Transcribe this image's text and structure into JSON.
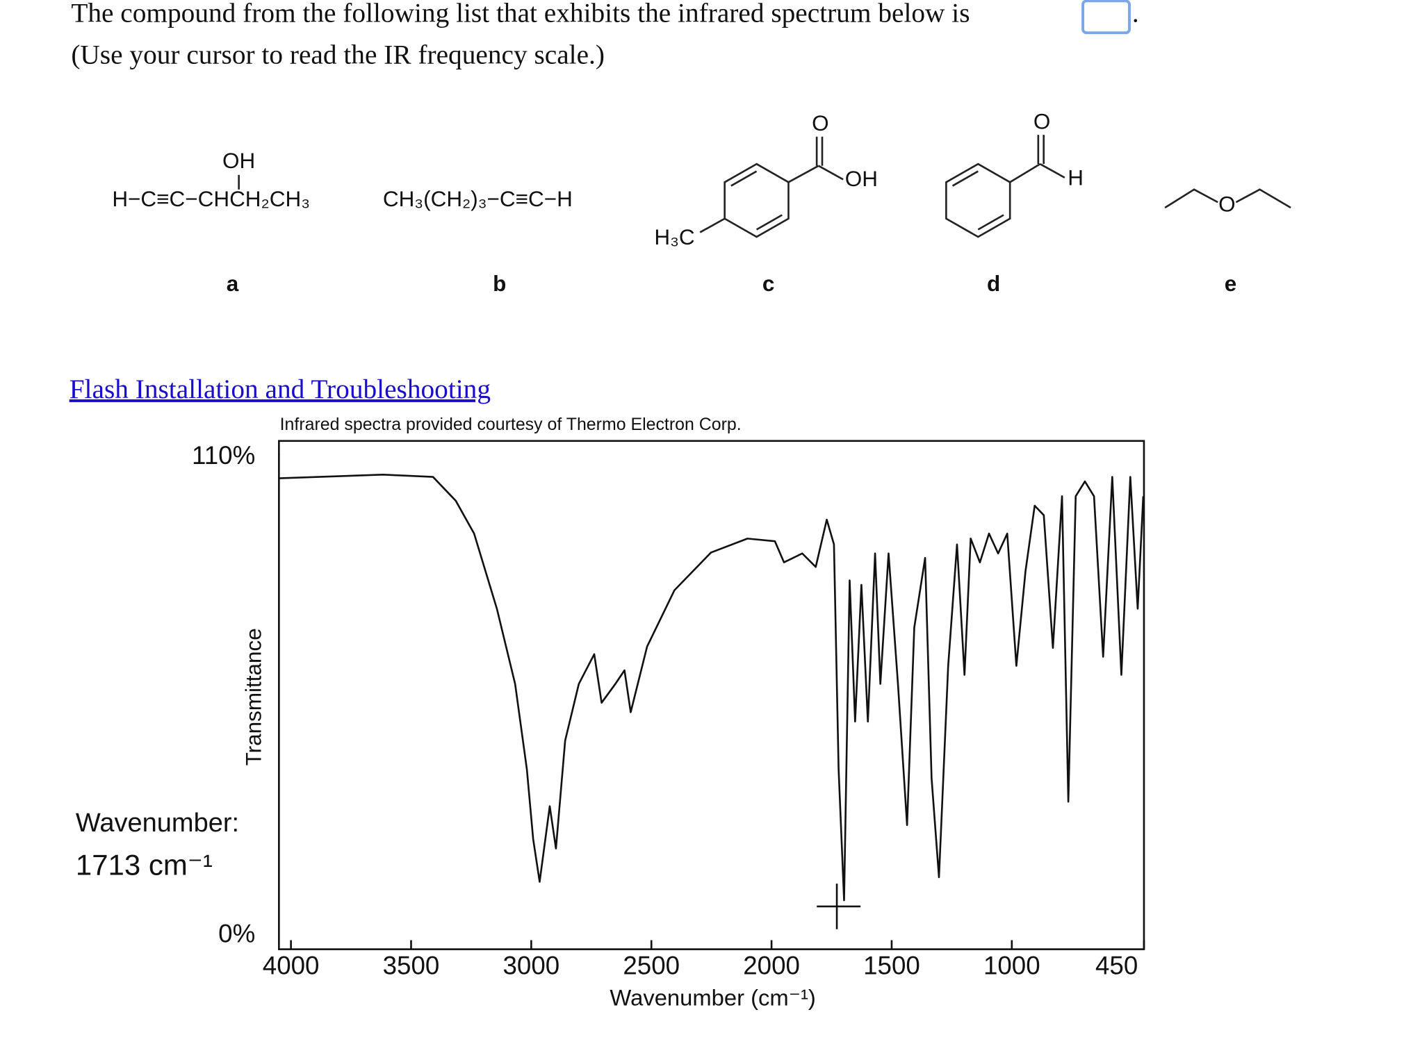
{
  "question": {
    "text": "The compound from the following list that exhibits the infrared spectrum below is",
    "end": ".",
    "hint": "(Use your cursor to read the IR frequency scale.)"
  },
  "structures": [
    {
      "label": "a",
      "texts": [
        "OH",
        "H−C≡C−CHCH₂CH₃"
      ]
    },
    {
      "label": "b",
      "texts": [
        "CH₃(CH₂)₃−C≡C−H"
      ]
    },
    {
      "label": "c",
      "texts": [
        "O",
        "OH",
        "H₃C"
      ]
    },
    {
      "label": "d",
      "texts": [
        "O",
        "H"
      ]
    },
    {
      "label": "e",
      "texts": [
        "O"
      ]
    }
  ],
  "link": "Flash Installation and Troubleshooting",
  "chart_data": {
    "type": "line",
    "credit": "Infrared spectra provided courtesy of Thermo Electron Corp.",
    "xlabel": "Wavenumber (cm⁻¹)",
    "ylabel": "Transmittance",
    "xlim": [
      4050,
      450
    ],
    "ylim": [
      0,
      113
    ],
    "xticks": [
      4000,
      3500,
      3000,
      2500,
      2000,
      1500,
      1000,
      450
    ],
    "yticks": [
      {
        "value": 0,
        "label": "0%"
      },
      {
        "value": 110,
        "label": "110%"
      }
    ],
    "cursor": {
      "label": "Wavenumber:",
      "value": 1713,
      "unit": "cm⁻¹"
    },
    "series": [
      {
        "name": "Transmittance",
        "color": "#111111",
        "x": [
          4050,
          3617,
          3409,
          3314,
          3238,
          3143,
          3067,
          3018,
          2992,
          2965,
          2923,
          2897,
          2859,
          2802,
          2738,
          2707,
          2650,
          2612,
          2586,
          2518,
          2404,
          2252,
          2100,
          1986,
          1948,
          1872,
          1816,
          1770,
          1740,
          1721,
          1698,
          1675,
          1652,
          1626,
          1599,
          1569,
          1547,
          1513,
          1474,
          1436,
          1406,
          1361,
          1334,
          1303,
          1265,
          1228,
          1197,
          1171,
          1133,
          1095,
          1057,
          1019,
          981,
          943,
          905,
          867,
          829,
          791,
          765,
          734,
          696,
          658,
          620,
          582,
          544,
          507,
          476,
          453
        ],
        "values": [
          104.7,
          105.5,
          105,
          99.7,
          92.4,
          75.7,
          59,
          40,
          24.5,
          15,
          31.8,
          22.4,
          46.4,
          59,
          65.6,
          54.8,
          59,
          62,
          52.7,
          67.3,
          79.8,
          88.2,
          91.3,
          90.7,
          86,
          88,
          85,
          95.5,
          90,
          40,
          10.9,
          82,
          50.6,
          81,
          50.6,
          88,
          59,
          88,
          59,
          27.6,
          71.5,
          87,
          38,
          16,
          63,
          90,
          61,
          91.3,
          86,
          92.4,
          88,
          92.4,
          63,
          84,
          98.6,
          96.5,
          67,
          100.7,
          32.8,
          100.7,
          104,
          100.7,
          65,
          105,
          61,
          105,
          75.7,
          100.7
        ]
      }
    ]
  }
}
